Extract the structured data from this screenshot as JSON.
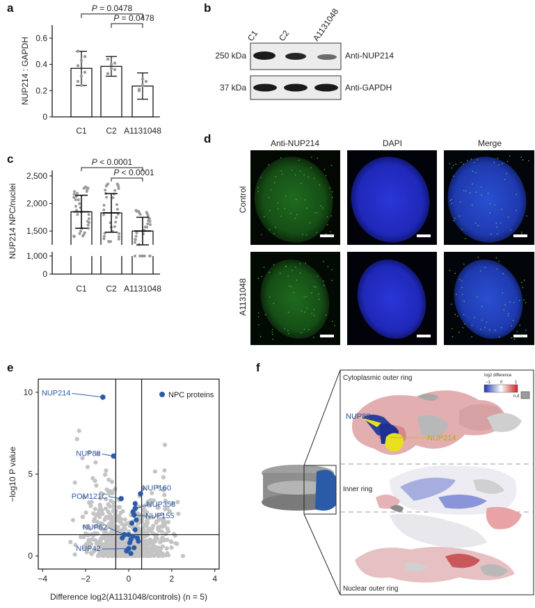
{
  "panels": {
    "a": "a",
    "b": "b",
    "c": "c",
    "d": "d",
    "e": "e",
    "f": "f"
  },
  "chart_data": [
    {
      "panel": "a",
      "type": "bar",
      "categories": [
        "C1",
        "C2",
        "A1131048"
      ],
      "values": [
        0.37,
        0.385,
        0.235
      ],
      "errors": [
        0.13,
        0.075,
        0.1
      ],
      "points": [
        [
          0.27,
          0.31,
          0.34,
          0.39,
          0.43,
          0.46,
          0.5,
          0.24
        ],
        [
          0.33,
          0.37,
          0.41,
          0.44,
          0.4,
          0.36
        ],
        [
          0.2,
          0.24,
          0.27,
          0.21,
          0.29
        ]
      ],
      "ylabel": "NUP214 : GAPDH",
      "yticks": [
        "0",
        "0.2",
        "0.4",
        "0.6"
      ],
      "ylim": [
        0,
        0.7
      ],
      "significance": [
        {
          "from": "C1",
          "to": "A1131048",
          "p_prefix": "P",
          "p_value": "= 0.0478"
        },
        {
          "from": "C2",
          "to": "A1131048",
          "p_prefix": "P",
          "p_value": "= 0.0478"
        }
      ]
    },
    {
      "panel": "c",
      "type": "bar",
      "categories": [
        "C1",
        "C2",
        "A1131048"
      ],
      "values": [
        1850,
        1830,
        1500
      ],
      "errors": [
        300,
        350,
        250
      ],
      "ylabel": "NUP214 NPC/nuclei",
      "yticks": [
        "0",
        "1,000",
        "1,500",
        "2,000",
        "2,500"
      ],
      "ylim": [
        0,
        2600
      ],
      "axis_break": [
        1000,
        1250
      ],
      "significance": [
        {
          "from": "C1",
          "to": "A1131048",
          "p_prefix": "P",
          "p_value": "< 0.0001"
        },
        {
          "from": "C2",
          "to": "A1131048",
          "p_prefix": "P",
          "p_value": "< 0.0001"
        }
      ]
    },
    {
      "panel": "e",
      "type": "scatter",
      "xlabel": "Difference log2(A1131048/controls) (n = 5)",
      "ylabel": "−log10 P value",
      "xticks": [
        "−4",
        "−2",
        "0",
        "2",
        "4"
      ],
      "yticks": [
        "0",
        "5",
        "10"
      ],
      "xlim": [
        -4.2,
        4.2
      ],
      "ylim": [
        -0.8,
        10.8
      ],
      "thresholds": {
        "x": [
          -0.6,
          0.6
        ],
        "y": 1.3
      },
      "legend": "NPC proteins",
      "labeled_points": [
        {
          "name": "NUP214",
          "x": -1.2,
          "y": 9.7
        },
        {
          "name": "NUP88",
          "x": -0.7,
          "y": 6.1
        },
        {
          "name": "POM121C",
          "x": -0.35,
          "y": 3.5
        },
        {
          "name": "NUP160",
          "x": 0.55,
          "y": 3.8
        },
        {
          "name": "NUP358",
          "x": 0.3,
          "y": 2.9
        },
        {
          "name": "NUP155",
          "x": 0.25,
          "y": 2.5
        },
        {
          "name": "NUP62",
          "x": -0.2,
          "y": 1.3
        },
        {
          "name": "NUP42",
          "x": 0.0,
          "y": 0.45
        }
      ],
      "npc_points": [
        [
          0.1,
          1.0
        ],
        [
          0.2,
          1.2
        ],
        [
          0.05,
          0.8
        ],
        [
          0.3,
          1.6
        ],
        [
          0.15,
          2.0
        ],
        [
          0.35,
          2.2
        ],
        [
          0.25,
          0.5
        ],
        [
          -0.1,
          0.3
        ],
        [
          0.1,
          0.15
        ],
        [
          0.4,
          1.1
        ],
        [
          0.45,
          0.9
        ],
        [
          0.2,
          2.7
        ],
        [
          0.3,
          3.2
        ],
        [
          -0.3,
          1.1
        ],
        [
          0.0,
          1.3
        ]
      ]
    }
  ],
  "western_blot": {
    "lanes": [
      "C1",
      "C2",
      "A1131048"
    ],
    "rows": [
      {
        "kda": "250 kDa",
        "antibody": "Anti-NUP214"
      },
      {
        "kda": "37 kDa",
        "antibody": "Anti-GAPDH"
      }
    ]
  },
  "microscopy": {
    "columns": [
      "Anti-NUP214",
      "DAPI",
      "Merge"
    ],
    "rows": [
      "Control",
      "A1131048"
    ]
  },
  "structure": {
    "labels": {
      "cytoplasmic": "Cytoplasmic outer ring",
      "inner": "Inner ring",
      "nuclear": "Nuclear outer ring",
      "nup88": "NUP88",
      "nup214": "NUP214"
    },
    "colorbar": {
      "title": "log2 difference",
      "min": "−1",
      "mid": "0",
      "max": "1",
      "nd": "n.d"
    }
  },
  "colors": {
    "bar_edge": "#111111",
    "dots": "#999999",
    "npc_blue": "#2b5aa8",
    "scatter_grey": "#c4c4c4",
    "yellow": "#e8df1e",
    "pink": "#d9898e"
  }
}
